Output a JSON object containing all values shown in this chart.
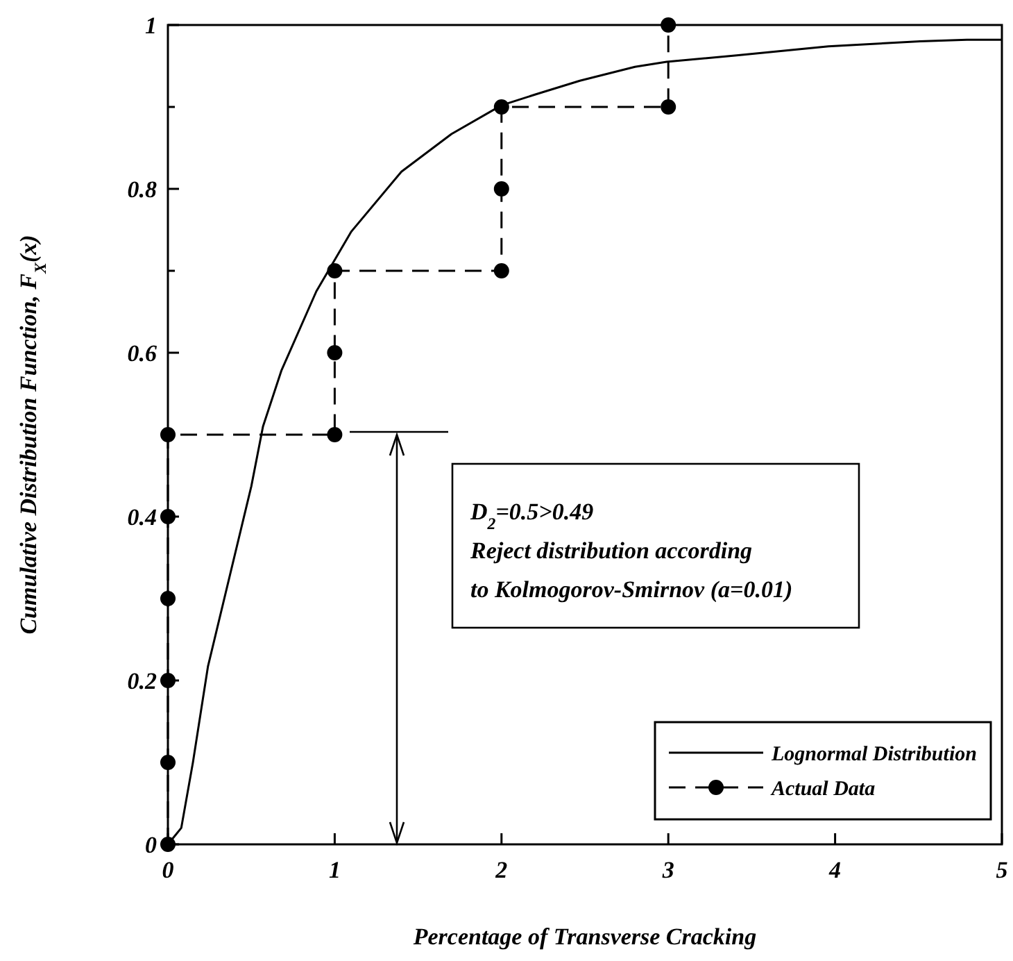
{
  "chart_data": {
    "type": "line",
    "xlabel": "Percentage of Transverse Cracking",
    "ylabel": "Cumulative Distribution Function, F$_{X}$(x)",
    "xlim": [
      0,
      5
    ],
    "ylim": [
      0,
      1
    ],
    "xticks": [
      0,
      1,
      2,
      3,
      4,
      5
    ],
    "yticks": [
      0,
      {
        "value": 0.1,
        "label": null
      },
      0.2,
      {
        "value": 0.3,
        "label": null
      },
      0.4,
      {
        "value": 0.5,
        "label": null
      },
      0.6,
      {
        "value": 0.7,
        "label": null
      },
      0.8,
      {
        "value": 0.9,
        "label": null
      },
      1
    ],
    "legend": "bottom right",
    "grid": false,
    "series": [
      {
        "name": "Lognormal Distribution",
        "color": "#000000",
        "line_style": "solid",
        "marker": "none",
        "x": [
          0,
          0.08,
          0.15,
          0.24,
          0.5,
          0.57,
          0.68,
          0.89,
          1.1,
          1.4,
          1.7,
          2.0,
          2.2,
          2.47,
          2.8,
          2.99,
          3.41,
          3.96,
          4.51,
          4.79,
          5
        ],
        "values": [
          0,
          0.02,
          0.1,
          0.217,
          0.437,
          0.51,
          0.578,
          0.675,
          0.748,
          0.821,
          0.867,
          0.902,
          0.915,
          0.932,
          0.949,
          0.955,
          0.963,
          0.974,
          0.98,
          0.982,
          0.982
        ]
      },
      {
        "name": "Actual Data",
        "color": "#000000",
        "line_style": "dashed",
        "marker": "circle",
        "x": [
          0,
          0,
          0,
          0,
          0,
          0,
          1,
          1,
          1,
          2,
          2,
          2,
          3,
          3
        ],
        "values": [
          0,
          0.1,
          0.2,
          0.3,
          0.4,
          0.5,
          0.5,
          0.6,
          0.7,
          0.7,
          0.8,
          0.9,
          0.9,
          1
        ]
      }
    ],
    "annotations": [
      "D$_{2}$=0.5>0.49\nReject distribution according\nto Kolmogorov-Smirnov (a=0.01)"
    ]
  }
}
